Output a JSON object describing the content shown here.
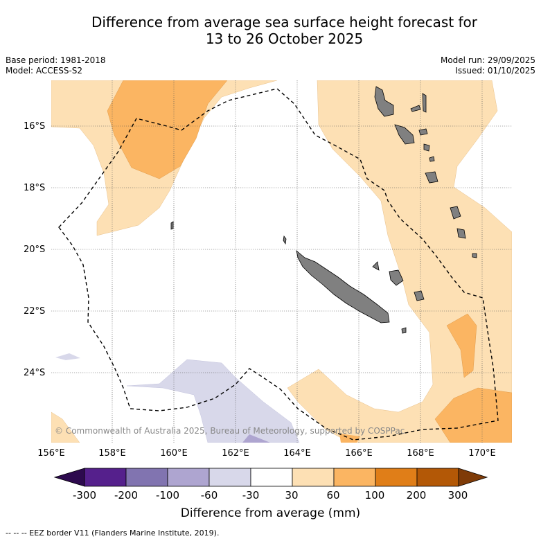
{
  "header": {
    "title_line1": "Difference from average sea surface height forecast for",
    "title_line2": "13 to 26 October 2025",
    "base_period": "Base period: 1981-2018",
    "model": "Model: ACCESS-S2",
    "model_run": "Model run: 29/09/2025",
    "issued": "Issued: 01/10/2025"
  },
  "map": {
    "lat_labels": [
      "16°S",
      "18°S",
      "20°S",
      "22°S",
      "24°S"
    ],
    "lon_labels": [
      "156°E",
      "158°E",
      "160°E",
      "162°E",
      "164°E",
      "166°E",
      "168°E",
      "170°E"
    ],
    "copyright": "© Commonwealth of Australia 2025, Bureau of Meteorology, supported by COSPPac"
  },
  "colorbar": {
    "ticks": [
      "-300",
      "-200",
      "-100",
      "-60",
      "-30",
      "30",
      "60",
      "100",
      "200",
      "300"
    ],
    "colors": [
      "#55208c",
      "#8174b0",
      "#aea5d0",
      "#d8d8ea",
      "#ffffff",
      "#fde0b4",
      "#fbb562",
      "#e07e18",
      "#b35806"
    ],
    "under_color": "#2d0a4e",
    "over_color": "#7f3b08",
    "label": "Difference from average (mm)"
  },
  "footnote": "--  --  -- EEZ border V11 (Flanders Marine Institute, 2019).",
  "colors": {
    "land": "#808080",
    "eez": "#000000"
  }
}
